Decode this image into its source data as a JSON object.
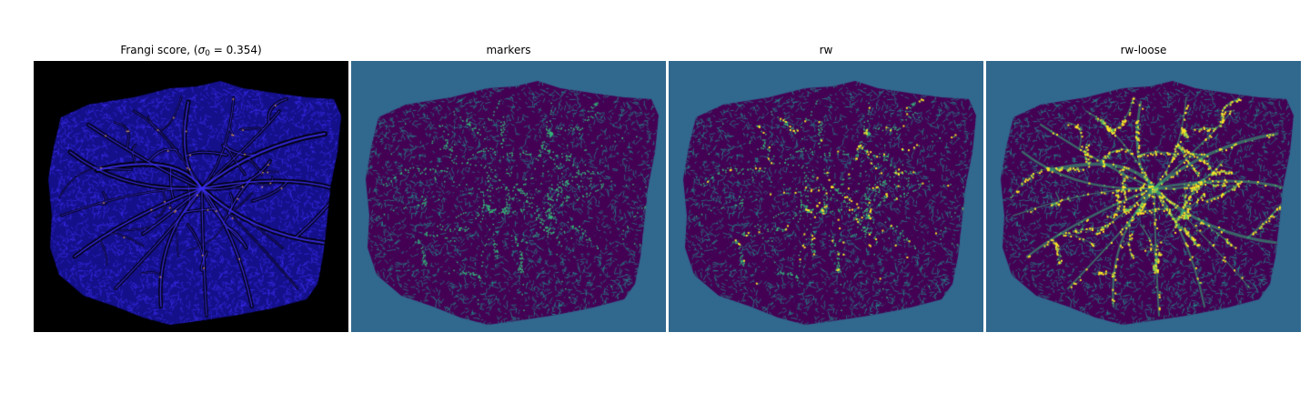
{
  "figure": {
    "panels": [
      {
        "title_prefix": "Frangi score, (",
        "title_sigma": "σ",
        "title_sub": "0",
        "title_suffix": " = 0.354)",
        "colormap": "gnuplot2",
        "background": "#000000",
        "tissue_base": "#14108a",
        "vessel": "#3a2df0",
        "highlight": "#e8a25a"
      },
      {
        "title": "markers",
        "colormap": "viridis",
        "background": "#31688e",
        "tissue_base": "#440154",
        "vessel": "#35b779",
        "highlight": "#35b779"
      },
      {
        "title": "rw",
        "colormap": "viridis",
        "background": "#31688e",
        "tissue_base": "#440154",
        "vessel": "#21918c",
        "highlight": "#fde725"
      },
      {
        "title": "rw-loose",
        "colormap": "viridis",
        "background": "#31688e",
        "tissue_base": "#440154",
        "vessel": "#21918c",
        "highlight": "#fde725"
      }
    ]
  }
}
